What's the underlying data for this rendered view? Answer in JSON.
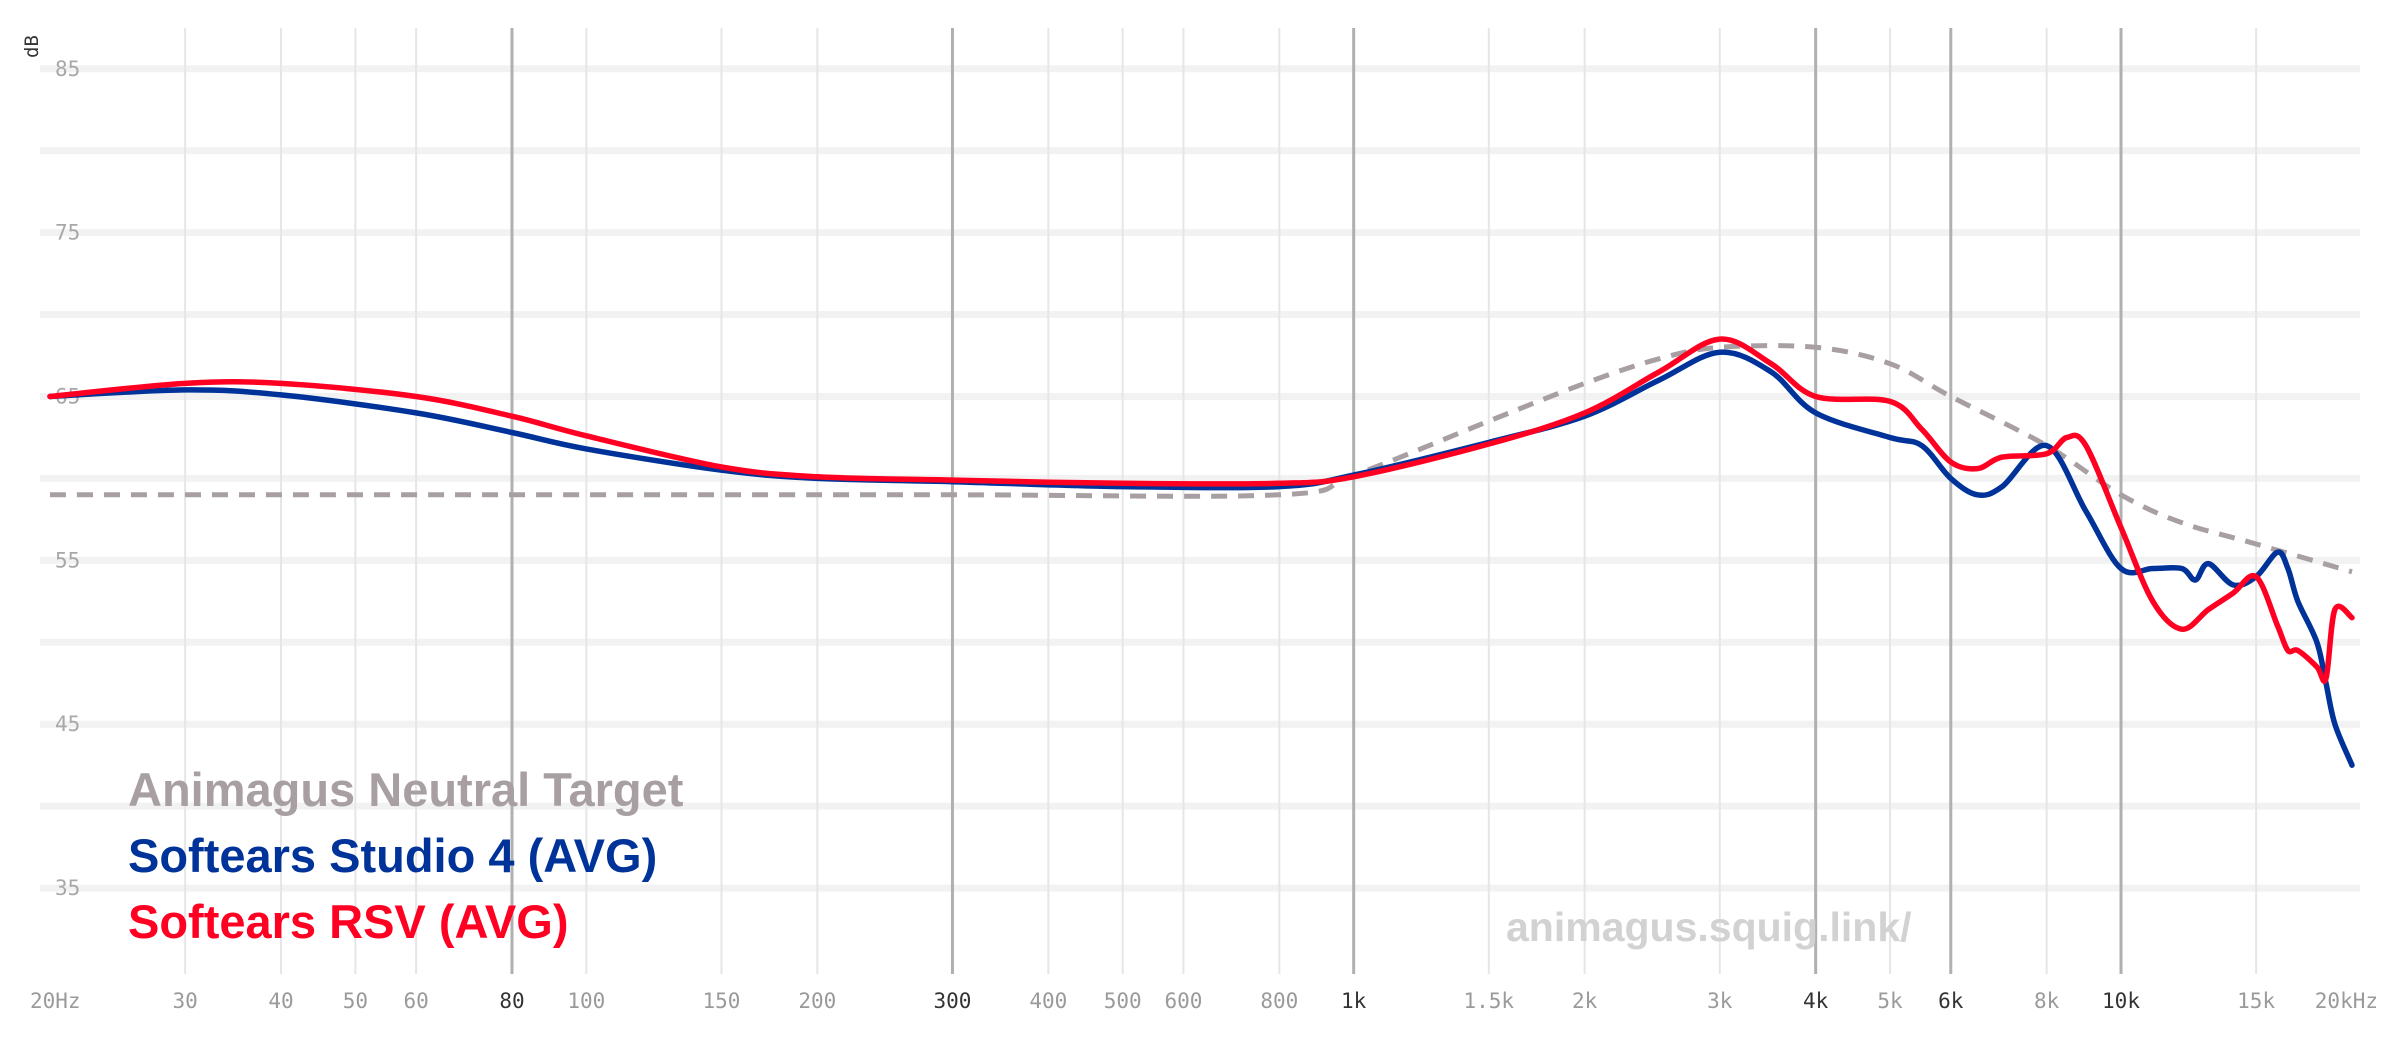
{
  "chart_data": {
    "type": "line",
    "title": "",
    "xlabel": "",
    "ylabel": "dB",
    "x_scale": "log",
    "xlim": [
      20,
      20000
    ],
    "ylim": [
      30,
      87
    ],
    "y_ticks": [
      "85",
      "75",
      "65",
      "55",
      "45",
      "35"
    ],
    "y_tick_values": [
      85,
      75,
      65,
      55,
      45,
      35
    ],
    "x_ticks": [
      {
        "label": "20Hz",
        "value": 20,
        "major": false
      },
      {
        "label": "30",
        "value": 30,
        "major": false
      },
      {
        "label": "40",
        "value": 40,
        "major": false
      },
      {
        "label": "50",
        "value": 50,
        "major": false
      },
      {
        "label": "60",
        "value": 60,
        "major": false
      },
      {
        "label": "80",
        "value": 80,
        "major": true
      },
      {
        "label": "100",
        "value": 100,
        "major": false
      },
      {
        "label": "150",
        "value": 150,
        "major": false
      },
      {
        "label": "200",
        "value": 200,
        "major": false
      },
      {
        "label": "300",
        "value": 300,
        "major": true
      },
      {
        "label": "400",
        "value": 400,
        "major": false
      },
      {
        "label": "500",
        "value": 500,
        "major": false
      },
      {
        "label": "600",
        "value": 600,
        "major": false
      },
      {
        "label": "800",
        "value": 800,
        "major": false
      },
      {
        "label": "1k",
        "value": 1000,
        "major": true
      },
      {
        "label": "1.5k",
        "value": 1500,
        "major": false
      },
      {
        "label": "2k",
        "value": 2000,
        "major": false
      },
      {
        "label": "3k",
        "value": 3000,
        "major": false
      },
      {
        "label": "4k",
        "value": 4000,
        "major": true
      },
      {
        "label": "5k",
        "value": 5000,
        "major": false
      },
      {
        "label": "6k",
        "value": 6000,
        "major": true
      },
      {
        "label": "8k",
        "value": 8000,
        "major": false
      },
      {
        "label": "10k",
        "value": 10000,
        "major": true
      },
      {
        "label": "15k",
        "value": 15000,
        "major": false
      },
      {
        "label": "20kHz",
        "value": 20000,
        "major": false
      }
    ],
    "grid": true,
    "legend_placement": "bottom-left",
    "watermark": "animagus.squig.link/",
    "series": [
      {
        "name": "Animagus Neutral Target",
        "color": "#a89fa3",
        "style": "dashed",
        "x": [
          20,
          100,
          300,
          800,
          1000,
          1500,
          2000,
          2500,
          3000,
          4000,
          5000,
          6000,
          8000,
          10000,
          12000,
          15000,
          20000
        ],
        "y": [
          59,
          59,
          59,
          59,
          60.2,
          63.5,
          65.8,
          67.3,
          68,
          68,
          67,
          65,
          62,
          59,
          57.3,
          56,
          54.3
        ]
      },
      {
        "name": "Softears Studio 4 (AVG)",
        "color": "#003399",
        "style": "solid",
        "x": [
          20,
          30,
          40,
          60,
          80,
          100,
          150,
          200,
          300,
          500,
          800,
          1000,
          1500,
          2000,
          2500,
          3000,
          3500,
          4000,
          5000,
          5500,
          6000,
          6500,
          7000,
          8000,
          9000,
          10000,
          11000,
          12000,
          12500,
          13000,
          14000,
          15000,
          16000,
          16500,
          17000,
          18000,
          18500,
          19000,
          20000
        ],
        "y": [
          65,
          65.4,
          65.1,
          64,
          62.8,
          61.8,
          60.5,
          60,
          59.8,
          59.5,
          59.5,
          60.2,
          62.2,
          63.8,
          66,
          67.7,
          66.5,
          64,
          62.5,
          62,
          60,
          59,
          59.5,
          62,
          58,
          54.5,
          54.5,
          54.5,
          53.8,
          54.8,
          53.5,
          54,
          55.5,
          54.5,
          52.5,
          50,
          47.5,
          45,
          42.5
        ]
      },
      {
        "name": "Softears RSV (AVG)",
        "color": "#ff0022",
        "style": "solid",
        "x": [
          20,
          30,
          40,
          60,
          80,
          100,
          150,
          200,
          300,
          500,
          800,
          1000,
          1500,
          2000,
          2500,
          3000,
          3500,
          4000,
          5000,
          5500,
          6000,
          6500,
          7000,
          8000,
          8500,
          9000,
          10000,
          11000,
          12000,
          13000,
          14000,
          15000,
          16000,
          16500,
          17000,
          18000,
          18500,
          19000,
          20000
        ],
        "y": [
          65,
          65.8,
          65.8,
          65,
          63.8,
          62.6,
          60.7,
          60.1,
          59.9,
          59.7,
          59.7,
          60.1,
          62.1,
          64,
          66.5,
          68.5,
          67,
          65,
          64.7,
          63,
          61,
          60.6,
          61.3,
          61.5,
          62.5,
          62,
          57,
          52.5,
          50.8,
          52,
          53,
          54,
          51,
          49.5,
          49.5,
          48.5,
          47.8,
          52,
          51.5
        ]
      }
    ]
  }
}
